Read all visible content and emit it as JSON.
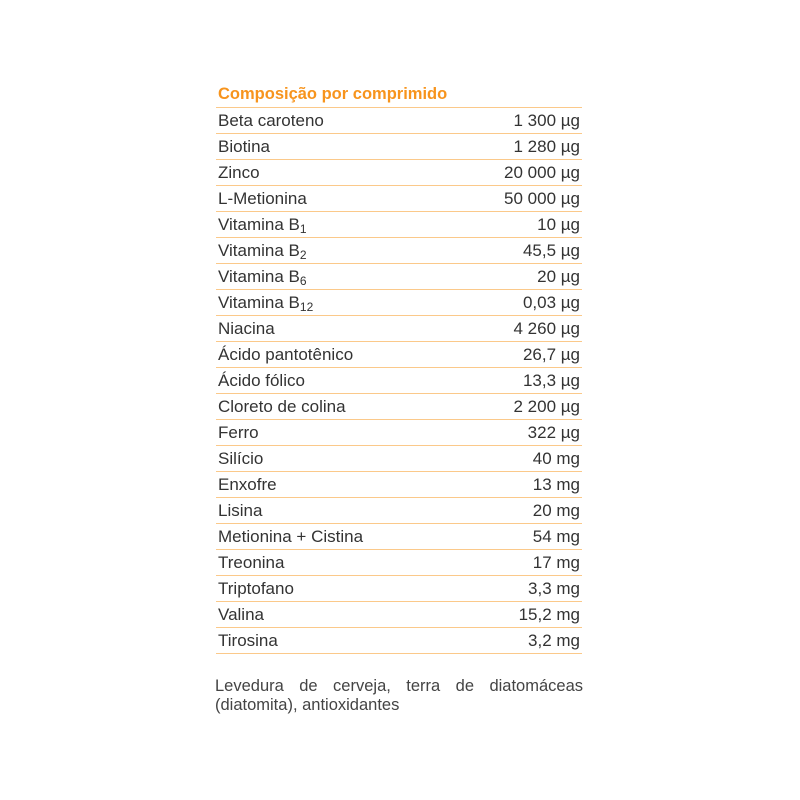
{
  "title": "Composição por comprimido",
  "rows": [
    {
      "name": "Beta caroteno",
      "sub": "",
      "value": "1 300 µg"
    },
    {
      "name": "Biotina",
      "sub": "",
      "value": "1 280 µg"
    },
    {
      "name": "Zinco",
      "sub": "",
      "value": "20 000 µg"
    },
    {
      "name": "L-Metionina",
      "sub": "",
      "value": "50 000 µg"
    },
    {
      "name": "Vitamina B",
      "sub": "1",
      "value": "10 µg"
    },
    {
      "name": "Vitamina B",
      "sub": "2",
      "value": "45,5 µg"
    },
    {
      "name": "Vitamina B",
      "sub": "6",
      "value": "20 µg"
    },
    {
      "name": "Vitamina B",
      "sub": "12",
      "value": "0,03 µg"
    },
    {
      "name": "Niacina",
      "sub": "",
      "value": "4 260 µg"
    },
    {
      "name": "Ácido pantotênico",
      "sub": "",
      "value": "26,7 µg"
    },
    {
      "name": "Ácido fólico",
      "sub": "",
      "value": "13,3 µg"
    },
    {
      "name": "Cloreto de colina",
      "sub": "",
      "value": "2 200 µg"
    },
    {
      "name": "Ferro",
      "sub": "",
      "value": "322 µg"
    },
    {
      "name": "Silício",
      "sub": "",
      "value": "40 mg"
    },
    {
      "name": "Enxofre",
      "sub": "",
      "value": "13 mg"
    },
    {
      "name": "Lisina",
      "sub": "",
      "value": "20 mg"
    },
    {
      "name": "Metionina + Cistina",
      "sub": "",
      "value": "54 mg"
    },
    {
      "name": "Treonina",
      "sub": "",
      "value": "17 mg"
    },
    {
      "name": "Triptofano",
      "sub": "",
      "value": "3,3 mg"
    },
    {
      "name": "Valina",
      "sub": "",
      "value": "15,2 mg"
    },
    {
      "name": "Tirosina",
      "sub": "",
      "value": "3,2 mg"
    }
  ],
  "footer": "Levedura de cerveja, terra de diatomáceas (diatomita), antioxidantes",
  "colors": {
    "title": "#f7941d",
    "rule": "#fbc98a",
    "text": "#333333"
  }
}
